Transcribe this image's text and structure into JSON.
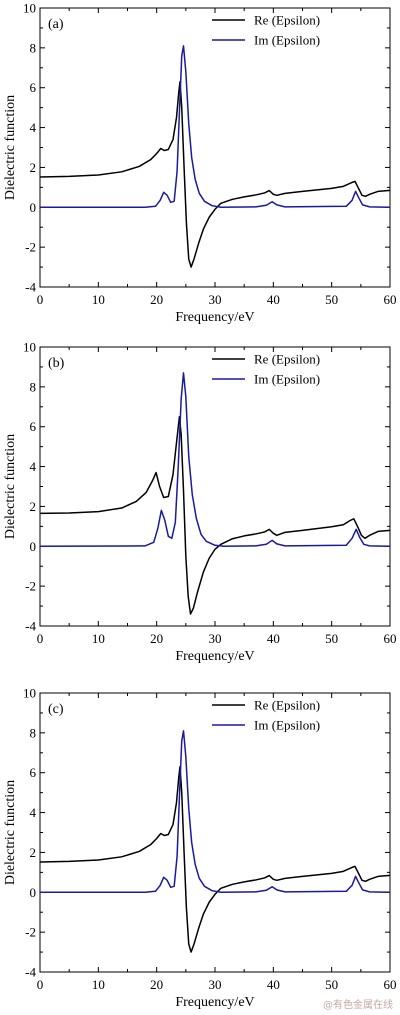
{
  "chart_data": [
    {
      "type": "line",
      "panel": "(a)",
      "xlabel": "Frequency/eV",
      "ylabel": "Dielectric function",
      "xlim": [
        0,
        60
      ],
      "ylim": [
        -4,
        10
      ],
      "xticks": [
        0,
        10,
        20,
        30,
        40,
        50,
        60
      ],
      "yticks": [
        -4,
        -2,
        0,
        2,
        4,
        6,
        8,
        10
      ],
      "legend": "top-right",
      "grid": false,
      "series": [
        {
          "name": "Re (Epsilon)",
          "color": "#000000",
          "points": [
            [
              0,
              1.52
            ],
            [
              5,
              1.55
            ],
            [
              10,
              1.62
            ],
            [
              14,
              1.78
            ],
            [
              17,
              2.05
            ],
            [
              19,
              2.4
            ],
            [
              20,
              2.7
            ],
            [
              20.7,
              2.95
            ],
            [
              21.3,
              2.85
            ],
            [
              22,
              2.9
            ],
            [
              22.8,
              3.4
            ],
            [
              23.4,
              4.5
            ],
            [
              23.8,
              5.8
            ],
            [
              24.0,
              6.3
            ],
            [
              24.3,
              5.0
            ],
            [
              24.7,
              2.0
            ],
            [
              25.1,
              -0.8
            ],
            [
              25.5,
              -2.6
            ],
            [
              25.9,
              -3.0
            ],
            [
              26.4,
              -2.6
            ],
            [
              27.2,
              -1.8
            ],
            [
              28,
              -1.1
            ],
            [
              29,
              -0.5
            ],
            [
              30,
              -0.1
            ],
            [
              31,
              0.2
            ],
            [
              33,
              0.4
            ],
            [
              35,
              0.52
            ],
            [
              37,
              0.62
            ],
            [
              38.5,
              0.72
            ],
            [
              39.3,
              0.84
            ],
            [
              40,
              0.65
            ],
            [
              40.6,
              0.6
            ],
            [
              42,
              0.7
            ],
            [
              45,
              0.8
            ],
            [
              50,
              0.95
            ],
            [
              52,
              1.05
            ],
            [
              53.5,
              1.25
            ],
            [
              54,
              1.3
            ],
            [
              54.6,
              0.95
            ],
            [
              55.2,
              0.6
            ],
            [
              55.8,
              0.55
            ],
            [
              56.5,
              0.65
            ],
            [
              58,
              0.8
            ],
            [
              60,
              0.85
            ]
          ]
        },
        {
          "name": "Im (Epsilon)",
          "color": "#1a1aa0",
          "points": [
            [
              0,
              0
            ],
            [
              18,
              0.0
            ],
            [
              19.8,
              0.05
            ],
            [
              20.6,
              0.35
            ],
            [
              21.2,
              0.75
            ],
            [
              21.8,
              0.6
            ],
            [
              22.4,
              0.25
            ],
            [
              23.0,
              0.3
            ],
            [
              23.5,
              1.8
            ],
            [
              24.0,
              5.5
            ],
            [
              24.3,
              7.6
            ],
            [
              24.6,
              8.1
            ],
            [
              25.0,
              6.8
            ],
            [
              25.5,
              4.2
            ],
            [
              26.0,
              2.5
            ],
            [
              26.6,
              1.4
            ],
            [
              27.3,
              0.7
            ],
            [
              28.2,
              0.3
            ],
            [
              29.5,
              0.08
            ],
            [
              31,
              0.0
            ],
            [
              37,
              0.02
            ],
            [
              38.8,
              0.1
            ],
            [
              39.8,
              0.28
            ],
            [
              40.6,
              0.12
            ],
            [
              42,
              0.02
            ],
            [
              52.5,
              0.05
            ],
            [
              53.5,
              0.35
            ],
            [
              54.1,
              0.8
            ],
            [
              54.6,
              0.5
            ],
            [
              55.3,
              0.12
            ],
            [
              56.5,
              0.02
            ],
            [
              60,
              0.0
            ]
          ]
        }
      ]
    },
    {
      "type": "line",
      "panel": "(b)",
      "xlabel": "Frequency/eV",
      "ylabel": "Dielectric function",
      "xlim": [
        0,
        60
      ],
      "ylim": [
        -4,
        10
      ],
      "xticks": [
        0,
        10,
        20,
        30,
        40,
        50,
        60
      ],
      "yticks": [
        -4,
        -2,
        0,
        2,
        4,
        6,
        8,
        10
      ],
      "legend": "top-right",
      "grid": false,
      "series": [
        {
          "name": "Re (Epsilon)",
          "color": "#000000",
          "points": [
            [
              0,
              1.65
            ],
            [
              5,
              1.67
            ],
            [
              10,
              1.74
            ],
            [
              14,
              1.92
            ],
            [
              16.5,
              2.25
            ],
            [
              18.2,
              2.7
            ],
            [
              19.3,
              3.3
            ],
            [
              19.9,
              3.7
            ],
            [
              20.5,
              3.0
            ],
            [
              21.2,
              2.45
            ],
            [
              22,
              2.5
            ],
            [
              22.8,
              3.6
            ],
            [
              23.4,
              5.2
            ],
            [
              23.9,
              6.5
            ],
            [
              24.2,
              5.6
            ],
            [
              24.6,
              2.8
            ],
            [
              25.0,
              -0.5
            ],
            [
              25.4,
              -2.5
            ],
            [
              25.8,
              -3.4
            ],
            [
              26.3,
              -3.1
            ],
            [
              27,
              -2.3
            ],
            [
              28,
              -1.3
            ],
            [
              29,
              -0.6
            ],
            [
              30,
              -0.15
            ],
            [
              31,
              0.1
            ],
            [
              33,
              0.38
            ],
            [
              35,
              0.52
            ],
            [
              37,
              0.62
            ],
            [
              38.5,
              0.72
            ],
            [
              39.3,
              0.85
            ],
            [
              40,
              0.65
            ],
            [
              40.6,
              0.55
            ],
            [
              42,
              0.7
            ],
            [
              45,
              0.8
            ],
            [
              50,
              0.98
            ],
            [
              52,
              1.08
            ],
            [
              53.2,
              1.3
            ],
            [
              53.8,
              1.38
            ],
            [
              54.5,
              0.95
            ],
            [
              55.1,
              0.55
            ],
            [
              55.7,
              0.4
            ],
            [
              56.5,
              0.55
            ],
            [
              58,
              0.75
            ],
            [
              60,
              0.8
            ]
          ]
        },
        {
          "name": "Im (Epsilon)",
          "color": "#1a1aa0",
          "points": [
            [
              0,
              0
            ],
            [
              18,
              0.02
            ],
            [
              19.5,
              0.2
            ],
            [
              20.2,
              0.9
            ],
            [
              20.8,
              1.8
            ],
            [
              21.4,
              1.3
            ],
            [
              22.0,
              0.5
            ],
            [
              22.6,
              0.4
            ],
            [
              23.2,
              1.2
            ],
            [
              23.7,
              4.0
            ],
            [
              24.2,
              7.4
            ],
            [
              24.6,
              8.7
            ],
            [
              25.0,
              7.5
            ],
            [
              25.5,
              4.5
            ],
            [
              26.1,
              2.6
            ],
            [
              26.8,
              1.4
            ],
            [
              27.6,
              0.6
            ],
            [
              28.5,
              0.25
            ],
            [
              30,
              0.05
            ],
            [
              31.5,
              0.0
            ],
            [
              37,
              0.02
            ],
            [
              38.8,
              0.1
            ],
            [
              39.8,
              0.3
            ],
            [
              40.6,
              0.12
            ],
            [
              42,
              0.02
            ],
            [
              52.5,
              0.05
            ],
            [
              53.5,
              0.4
            ],
            [
              54.2,
              0.85
            ],
            [
              54.8,
              0.45
            ],
            [
              55.5,
              0.1
            ],
            [
              56.5,
              0.02
            ],
            [
              60,
              0.0
            ]
          ]
        }
      ]
    },
    {
      "type": "line",
      "panel": "(c)",
      "xlabel": "Frequency/eV",
      "ylabel": "Dielectric function",
      "xlim": [
        0,
        60
      ],
      "ylim": [
        -4,
        10
      ],
      "xticks": [
        0,
        10,
        20,
        30,
        40,
        50,
        60
      ],
      "yticks": [
        -4,
        -2,
        0,
        2,
        4,
        6,
        8,
        10
      ],
      "legend": "top-right",
      "grid": false,
      "series": [
        {
          "name": "Re (Epsilon)",
          "color": "#000000",
          "points": [
            [
              0,
              1.52
            ],
            [
              5,
              1.55
            ],
            [
              10,
              1.62
            ],
            [
              14,
              1.78
            ],
            [
              17,
              2.05
            ],
            [
              19,
              2.4
            ],
            [
              20,
              2.7
            ],
            [
              20.7,
              2.95
            ],
            [
              21.3,
              2.85
            ],
            [
              22,
              2.9
            ],
            [
              22.8,
              3.4
            ],
            [
              23.4,
              4.5
            ],
            [
              23.8,
              5.8
            ],
            [
              24.0,
              6.3
            ],
            [
              24.3,
              5.0
            ],
            [
              24.7,
              2.0
            ],
            [
              25.1,
              -0.8
            ],
            [
              25.5,
              -2.6
            ],
            [
              25.9,
              -3.0
            ],
            [
              26.4,
              -2.6
            ],
            [
              27.2,
              -1.8
            ],
            [
              28,
              -1.1
            ],
            [
              29,
              -0.5
            ],
            [
              30,
              -0.1
            ],
            [
              31,
              0.2
            ],
            [
              33,
              0.4
            ],
            [
              35,
              0.52
            ],
            [
              37,
              0.62
            ],
            [
              38.5,
              0.72
            ],
            [
              39.3,
              0.84
            ],
            [
              40,
              0.65
            ],
            [
              40.6,
              0.6
            ],
            [
              42,
              0.7
            ],
            [
              45,
              0.8
            ],
            [
              50,
              0.95
            ],
            [
              52,
              1.05
            ],
            [
              53.5,
              1.25
            ],
            [
              54,
              1.3
            ],
            [
              54.6,
              0.95
            ],
            [
              55.2,
              0.6
            ],
            [
              55.8,
              0.55
            ],
            [
              56.5,
              0.65
            ],
            [
              58,
              0.8
            ],
            [
              60,
              0.85
            ]
          ]
        },
        {
          "name": "Im (Epsilon)",
          "color": "#1a1aa0",
          "points": [
            [
              0,
              0
            ],
            [
              18,
              0.0
            ],
            [
              19.8,
              0.05
            ],
            [
              20.6,
              0.35
            ],
            [
              21.2,
              0.75
            ],
            [
              21.8,
              0.6
            ],
            [
              22.4,
              0.25
            ],
            [
              23.0,
              0.3
            ],
            [
              23.5,
              1.8
            ],
            [
              24.0,
              5.5
            ],
            [
              24.3,
              7.6
            ],
            [
              24.6,
              8.1
            ],
            [
              25.0,
              6.8
            ],
            [
              25.5,
              4.2
            ],
            [
              26.0,
              2.5
            ],
            [
              26.6,
              1.4
            ],
            [
              27.3,
              0.7
            ],
            [
              28.2,
              0.3
            ],
            [
              29.5,
              0.08
            ],
            [
              31,
              0.0
            ],
            [
              37,
              0.02
            ],
            [
              38.8,
              0.1
            ],
            [
              39.8,
              0.28
            ],
            [
              40.6,
              0.12
            ],
            [
              42,
              0.02
            ],
            [
              52.5,
              0.05
            ],
            [
              53.5,
              0.35
            ],
            [
              54.1,
              0.8
            ],
            [
              54.6,
              0.5
            ],
            [
              55.3,
              0.12
            ],
            [
              56.5,
              0.02
            ],
            [
              60,
              0.0
            ]
          ]
        }
      ]
    }
  ],
  "watermark": "@有色金属在线"
}
